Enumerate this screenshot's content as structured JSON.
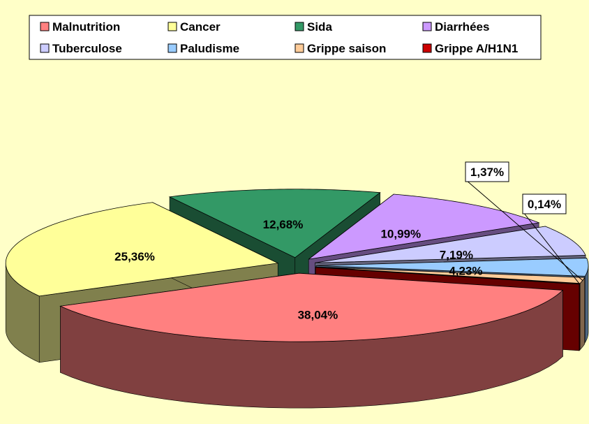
{
  "chart_data": {
    "type": "pie",
    "style": "3d-exploded",
    "background_color": "#FFFFC8",
    "legend_position": "top",
    "legend_columns": 4,
    "title": "",
    "slices": [
      {
        "name": "Malnutrition",
        "value": 38.04,
        "label": "38,04%",
        "color": "#FF8080"
      },
      {
        "name": "Cancer",
        "value": 25.36,
        "label": "25,36%",
        "color": "#FFFF99"
      },
      {
        "name": "Sida",
        "value": 12.68,
        "label": "12,68%",
        "color": "#339966"
      },
      {
        "name": "Diarrhées",
        "value": 10.99,
        "label": "10,99%",
        "color": "#CC99FF"
      },
      {
        "name": "Tuberculose",
        "value": 7.19,
        "label": "7,19%",
        "color": "#CCCCFF"
      },
      {
        "name": "Paludisme",
        "value": 4.23,
        "label": "4,23%",
        "color": "#99CCFF"
      },
      {
        "name": "Grippe saison",
        "value": 1.37,
        "label": "1,37%",
        "color": "#FFCC99"
      },
      {
        "name": "Grippe A/H1N1",
        "value": 0.14,
        "label": "0,14%",
        "color": "#CC0000"
      }
    ]
  }
}
